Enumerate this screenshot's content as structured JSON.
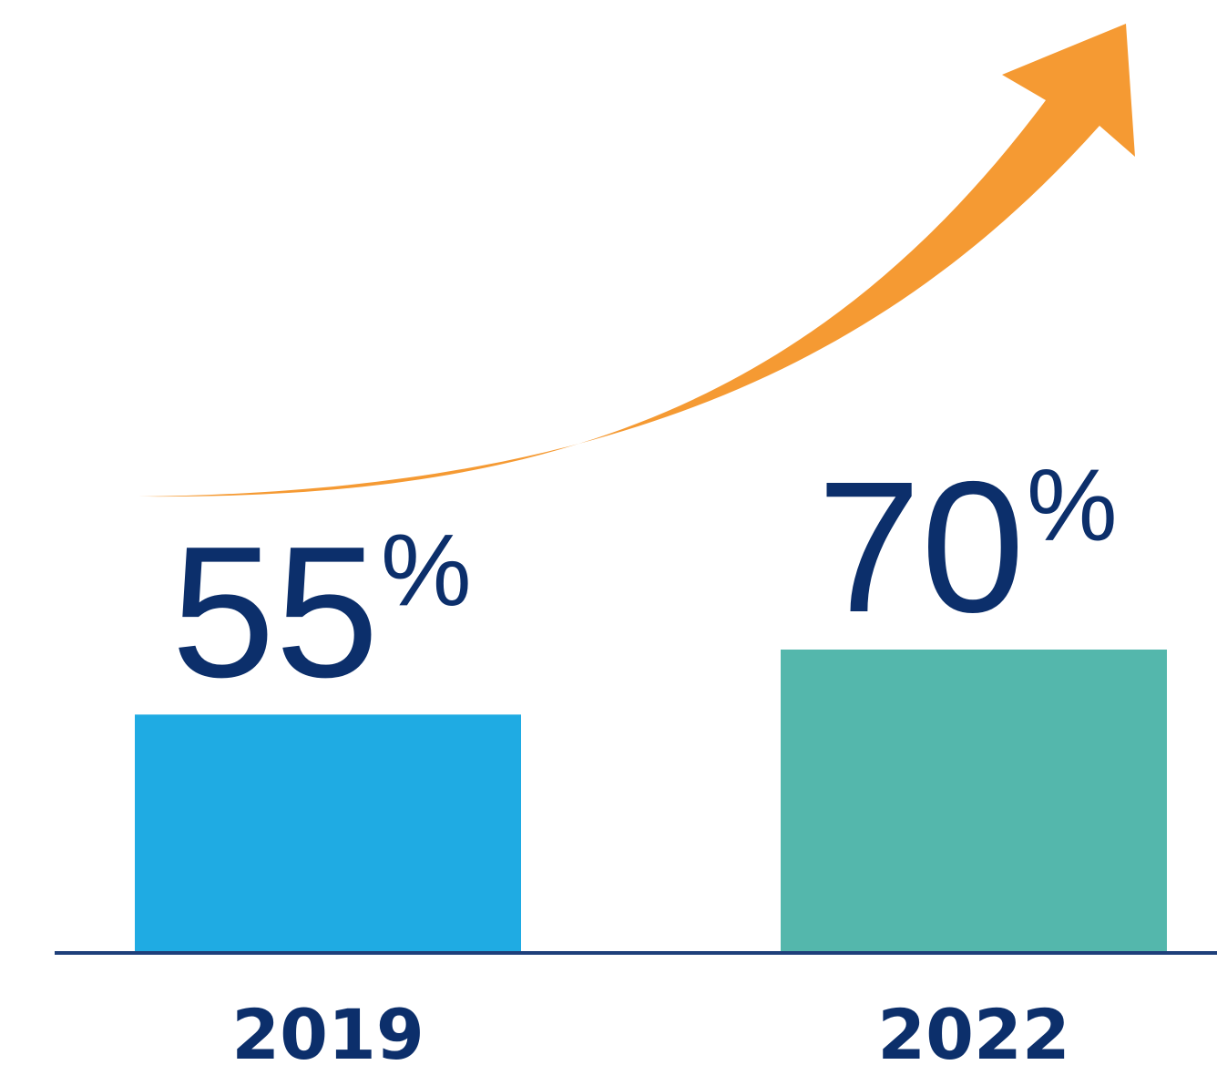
{
  "chart_data": {
    "type": "bar",
    "categories": [
      "2019",
      "2022"
    ],
    "values": [
      55,
      70
    ],
    "value_labels": [
      "55",
      "70"
    ],
    "unit_suffix": "%",
    "ylim": [
      0,
      100
    ],
    "grid": false,
    "legend": "none",
    "annotations": [
      {
        "type": "arrow",
        "direction": "upward",
        "description": "curved growth arrow"
      }
    ]
  },
  "colors": {
    "bars": [
      "#1fabe3",
      "#54b7ac"
    ],
    "value_text": "#0c2f6b",
    "axis": "#1e3f7a",
    "arrow": "#f59a33",
    "background": "#ffffff"
  },
  "icons": {
    "arrow": "growth-arrow-icon"
  }
}
